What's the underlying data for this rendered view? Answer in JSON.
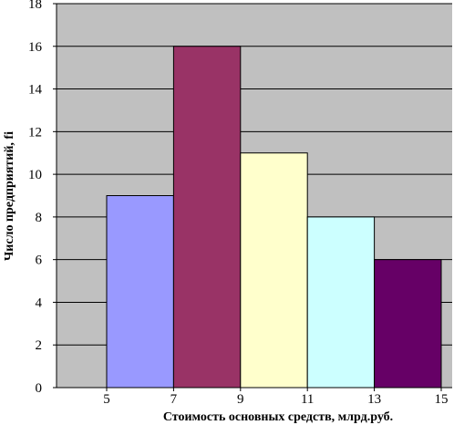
{
  "chart_data": {
    "type": "bar",
    "subtype": "histogram",
    "title": "",
    "xlabel": "Стоимость основных средств, млрд.руб.",
    "ylabel": "Число предприятий, fi",
    "x_ticks": [
      "5",
      "7",
      "9",
      "11",
      "13",
      "15"
    ],
    "y_ticks": [
      "0",
      "2",
      "4",
      "6",
      "8",
      "10",
      "12",
      "14",
      "16",
      "18"
    ],
    "ylim": [
      0,
      18
    ],
    "xlim": [
      3,
      15
    ],
    "grid": "horizontal",
    "legend": "none",
    "plot_background": "#c0c0c0",
    "bins": [
      {
        "from": 5,
        "to": 7,
        "value": 9,
        "color": "#9999ff"
      },
      {
        "from": 7,
        "to": 9,
        "value": 16,
        "color": "#993366"
      },
      {
        "from": 9,
        "to": 11,
        "value": 11,
        "color": "#ffffcc"
      },
      {
        "from": 11,
        "to": 13,
        "value": 8,
        "color": "#ccffff"
      },
      {
        "from": 13,
        "to": 15,
        "value": 6,
        "color": "#660066"
      }
    ]
  }
}
